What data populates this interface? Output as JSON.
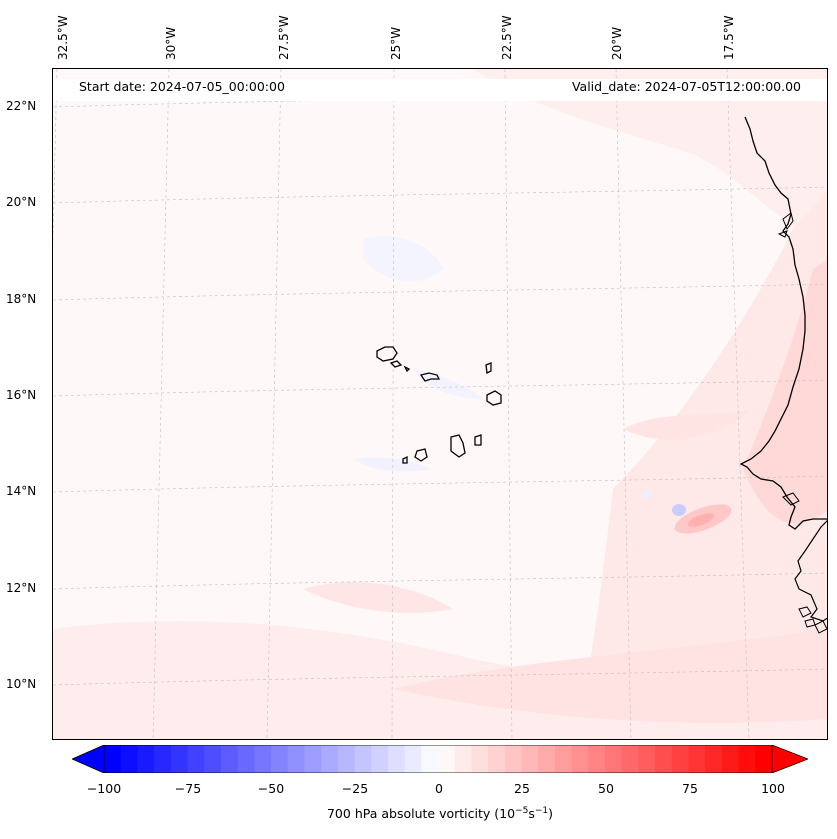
{
  "map": {
    "start_label": "Start date: 2024-07-05_00:00:00",
    "valid_label": "Valid_date: 2024-07-05T12:00:00.00",
    "lon_labels": [
      "32.5°W",
      "30°W",
      "27.5°W",
      "25°W",
      "22.5°W",
      "20°W",
      "17.5°W"
    ],
    "lat_labels": [
      "22°N",
      "20°N",
      "18°N",
      "16°N",
      "14°N",
      "12°N",
      "10°N"
    ],
    "field_colors": {
      "background": "#fff8f8",
      "light_pink": "#ffe6e6",
      "pink": "#ffd6d6",
      "medium_red": "#ffb8b8",
      "light_blue": "#eef0ff",
      "blue": "#c8ccff"
    }
  },
  "colorbar": {
    "title_prefix": "700 hPa absolute vorticity (10",
    "title_exp1": "−5",
    "title_mid": "s",
    "title_exp2": "−1",
    "title_suffix": ")",
    "ticks": [
      "−100",
      "−75",
      "−50",
      "−25",
      "0",
      "25",
      "50",
      "75",
      "100"
    ],
    "min_color": "#0000ff",
    "max_color": "#ff0000"
  }
}
